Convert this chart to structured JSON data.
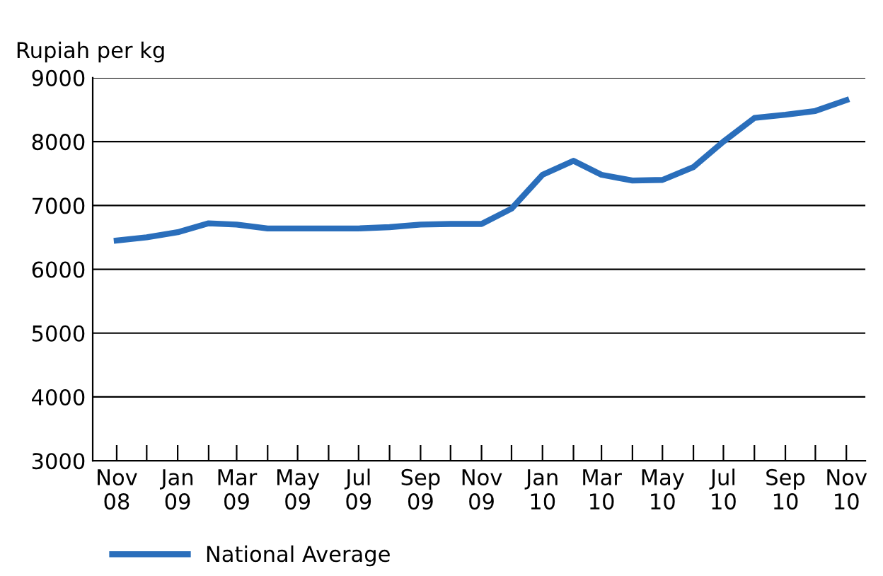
{
  "chart_data": {
    "type": "line",
    "ylabel": "Rupiah per kg",
    "x": [
      "2008-11",
      "2008-12",
      "2009-01",
      "2009-02",
      "2009-03",
      "2009-04",
      "2009-05",
      "2009-06",
      "2009-07",
      "2009-08",
      "2009-09",
      "2009-10",
      "2009-11",
      "2009-12",
      "2010-01",
      "2010-02",
      "2010-03",
      "2010-04",
      "2010-05",
      "2010-06",
      "2010-07",
      "2010-08",
      "2010-09",
      "2010-10",
      "2010-11"
    ],
    "series": [
      {
        "name": "National Average",
        "color": "#2a6ebb",
        "values": [
          6450,
          6500,
          6580,
          6720,
          6700,
          6640,
          6640,
          6640,
          6640,
          6660,
          6700,
          6710,
          6710,
          6950,
          7480,
          7700,
          7480,
          7390,
          7400,
          7600,
          8000,
          8370,
          8420,
          8480,
          8650
        ]
      }
    ],
    "xlim": [
      "2008-10-08",
      "2010-11-20"
    ],
    "xticks": [
      {
        "value": "2008-11",
        "label": "Nov\n08"
      },
      {
        "value": "2008-12",
        "label": null
      },
      {
        "value": "2009-01",
        "label": "Jan\n09"
      },
      {
        "value": "2009-02",
        "label": null
      },
      {
        "value": "2009-03",
        "label": "Mar\n09"
      },
      {
        "value": "2009-04",
        "label": null
      },
      {
        "value": "2009-05",
        "label": "May\n09"
      },
      {
        "value": "2009-06",
        "label": null
      },
      {
        "value": "2009-07",
        "label": "Jul\n09"
      },
      {
        "value": "2009-08",
        "label": null
      },
      {
        "value": "2009-09",
        "label": "Sep\n09"
      },
      {
        "value": "2009-10",
        "label": null
      },
      {
        "value": "2009-11",
        "label": "Nov\n09"
      },
      {
        "value": "2009-12",
        "label": null
      },
      {
        "value": "2010-01",
        "label": "Jan\n10"
      },
      {
        "value": "2010-02",
        "label": null
      },
      {
        "value": "2010-03",
        "label": "Mar\n10"
      },
      {
        "value": "2010-04",
        "label": null
      },
      {
        "value": "2010-05",
        "label": "May\n10"
      },
      {
        "value": "2010-06",
        "label": null
      },
      {
        "value": "2010-07",
        "label": "Jul\n10"
      },
      {
        "value": "2010-08",
        "label": null
      },
      {
        "value": "2010-09",
        "label": "Sep\n10"
      },
      {
        "value": "2010-10",
        "label": null
      },
      {
        "value": "2010-11",
        "label": "Nov\n10"
      }
    ],
    "ylim": [
      3000,
      9000
    ],
    "yticks": [
      3000,
      4000,
      5000,
      6000,
      7000,
      8000,
      9000
    ],
    "grid": "y",
    "legend": "bottom",
    "marker": "none",
    "line_style": "solid"
  }
}
